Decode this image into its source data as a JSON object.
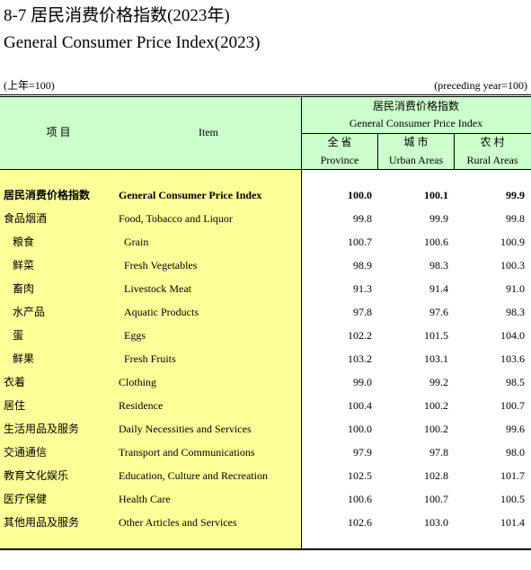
{
  "header": {
    "title": "8-7 居民消费价格指数(2023年)",
    "subtitle": "General Consumer Price Index(2023)",
    "unit_left": "(上年=100)",
    "unit_right": "(preceding year=100)"
  },
  "table": {
    "col_item_zh": "项 目",
    "col_item_en": "Item",
    "group_zh": "居民消费价格指数",
    "group_en": "General Consumer Price Index",
    "columns": [
      {
        "zh": "全 省",
        "en": "Province"
      },
      {
        "zh": "城 市",
        "en": "Urban Areas"
      },
      {
        "zh": "农 村",
        "en": "Rural Areas"
      }
    ],
    "rows": [
      [
        "居民消费价格指数",
        "General Consumer Price Index",
        "100.0",
        "100.1",
        "99.9"
      ],
      [
        "食品烟酒",
        "Food, Tobacco and Liquor",
        "99.8",
        "99.9",
        "99.8"
      ],
      [
        "粮食",
        "Grain",
        "100.7",
        "100.6",
        "100.9"
      ],
      [
        "鲜菜",
        "Fresh Vegetables",
        "98.9",
        "98.3",
        "100.3"
      ],
      [
        "畜肉",
        "Livestock Meat",
        "91.3",
        "91.4",
        "91.0"
      ],
      [
        "水产品",
        "Aquatic Products",
        "97.8",
        "97.6",
        "98.3"
      ],
      [
        "蛋",
        "Eggs",
        "102.2",
        "101.5",
        "104.0"
      ],
      [
        "鲜果",
        "Fresh Fruits",
        "103.2",
        "103.1",
        "103.6"
      ],
      [
        "衣着",
        "Clothing",
        "99.0",
        "99.2",
        "98.5"
      ],
      [
        "居住",
        "Residence",
        "100.4",
        "100.2",
        "100.7"
      ],
      [
        "生活用品及服务",
        "Daily Necessities and Services",
        "100.0",
        "100.2",
        "99.6"
      ],
      [
        "交通通信",
        "Transport and Communications",
        "97.9",
        "97.8",
        "98.0"
      ],
      [
        "教育文化娱乐",
        "Education, Culture and Recreation",
        "102.5",
        "102.8",
        "101.7"
      ],
      [
        "医疗保健",
        "Health Care",
        "100.6",
        "100.7",
        "100.5"
      ],
      [
        "其他用品及服务",
        "Other Articles and Services",
        "102.6",
        "103.0",
        "101.4"
      ]
    ]
  }
}
